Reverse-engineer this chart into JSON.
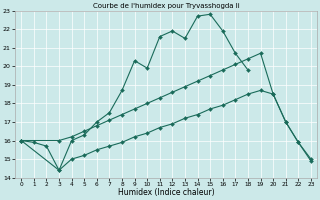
{
  "title": "Courbe de l'humidex pour Tryvasshogda Ii",
  "xlabel": "Humidex (Indice chaleur)",
  "xlim": [
    -0.5,
    23.5
  ],
  "ylim": [
    14,
    23
  ],
  "yticks": [
    14,
    15,
    16,
    17,
    18,
    19,
    20,
    21,
    22,
    23
  ],
  "xticks": [
    0,
    1,
    2,
    3,
    4,
    5,
    6,
    7,
    8,
    9,
    10,
    11,
    12,
    13,
    14,
    15,
    16,
    17,
    18,
    19,
    20,
    21,
    22,
    23
  ],
  "bg_color": "#cce9e9",
  "line_color": "#1a6b5a",
  "grid_color": "#ffffff",
  "curve1_x": [
    0,
    1,
    2,
    3,
    4,
    5,
    6,
    7,
    8,
    9,
    10,
    11,
    12,
    13,
    14,
    15,
    16,
    17,
    18
  ],
  "curve1_y": [
    16.0,
    15.9,
    15.7,
    14.4,
    16.0,
    16.3,
    17.0,
    17.5,
    18.7,
    20.3,
    19.9,
    21.6,
    21.9,
    21.5,
    22.7,
    22.8,
    21.9,
    20.7,
    19.8
  ],
  "curve2_x": [
    0,
    3,
    4,
    5,
    6,
    7,
    8,
    9,
    10,
    11,
    12,
    13,
    14,
    15,
    16,
    17,
    18,
    19,
    20,
    21,
    22,
    23
  ],
  "curve2_y": [
    16.0,
    16.0,
    16.2,
    16.5,
    16.8,
    17.1,
    17.4,
    17.7,
    18.0,
    18.3,
    18.6,
    18.9,
    19.2,
    19.5,
    19.8,
    20.1,
    20.4,
    20.7,
    18.5,
    17.0,
    15.9,
    15.0
  ],
  "curve3_x": [
    0,
    3,
    4,
    5,
    6,
    7,
    8,
    9,
    10,
    11,
    12,
    13,
    14,
    15,
    16,
    17,
    18,
    19,
    20,
    21,
    22,
    23
  ],
  "curve3_y": [
    16.0,
    14.4,
    15.0,
    15.2,
    15.5,
    15.7,
    15.9,
    16.2,
    16.4,
    16.7,
    16.9,
    17.2,
    17.4,
    17.7,
    17.9,
    18.2,
    18.5,
    18.7,
    18.5,
    17.0,
    15.9,
    14.9
  ]
}
